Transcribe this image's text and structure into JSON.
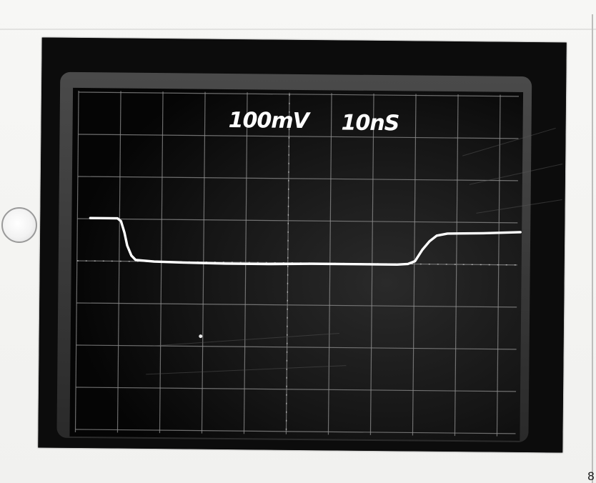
{
  "screen": {
    "volts_per_div": "100mV",
    "time_per_div": "10nS"
  },
  "colors": {
    "screen_background": "#0c0c0c",
    "graticule": "#8f8f8f",
    "trace": "#ffffff",
    "bezel": "#3a3a3a",
    "paper": "#f4f4f2"
  },
  "page_edge": {
    "corner_mark": "8"
  }
}
